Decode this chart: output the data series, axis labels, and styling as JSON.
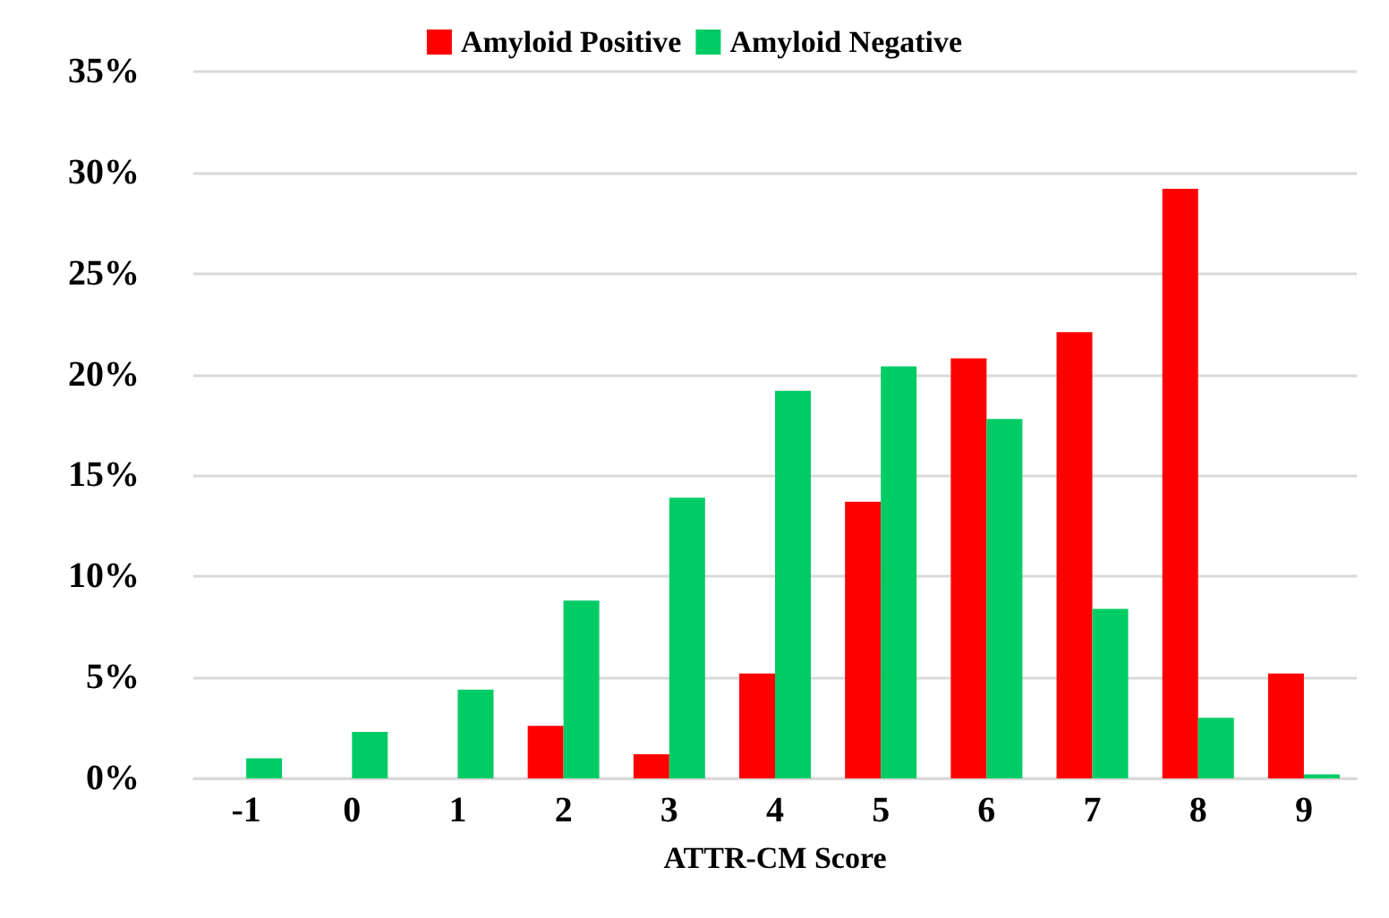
{
  "chart_data": {
    "type": "bar",
    "xlabel": "ATTR-CM Score",
    "categories": [
      "-1",
      "0",
      "1",
      "2",
      "3",
      "4",
      "5",
      "6",
      "7",
      "8",
      "9"
    ],
    "series": [
      {
        "name": "Amyloid Positive",
        "color": "#ff0000",
        "values": [
          0,
          0,
          0,
          2.6,
          1.2,
          5.2,
          13.7,
          20.8,
          22.1,
          29.2,
          5.2
        ]
      },
      {
        "name": "Amyloid Negative",
        "color": "#00cc66",
        "values": [
          1.0,
          2.3,
          4.4,
          8.8,
          13.9,
          19.2,
          20.4,
          17.8,
          8.4,
          3.0,
          0.2
        ]
      }
    ],
    "ylim": [
      0,
      35
    ],
    "yticks": [
      {
        "value": 0,
        "label": "0%"
      },
      {
        "value": 5,
        "label": "5%"
      },
      {
        "value": 10,
        "label": "10%"
      },
      {
        "value": 15,
        "label": "15%"
      },
      {
        "value": 20,
        "label": "20%"
      },
      {
        "value": 25,
        "label": "25%"
      },
      {
        "value": 30,
        "label": "30%"
      },
      {
        "value": 35,
        "label": "35%"
      }
    ],
    "grid": "y",
    "legend": "top"
  }
}
